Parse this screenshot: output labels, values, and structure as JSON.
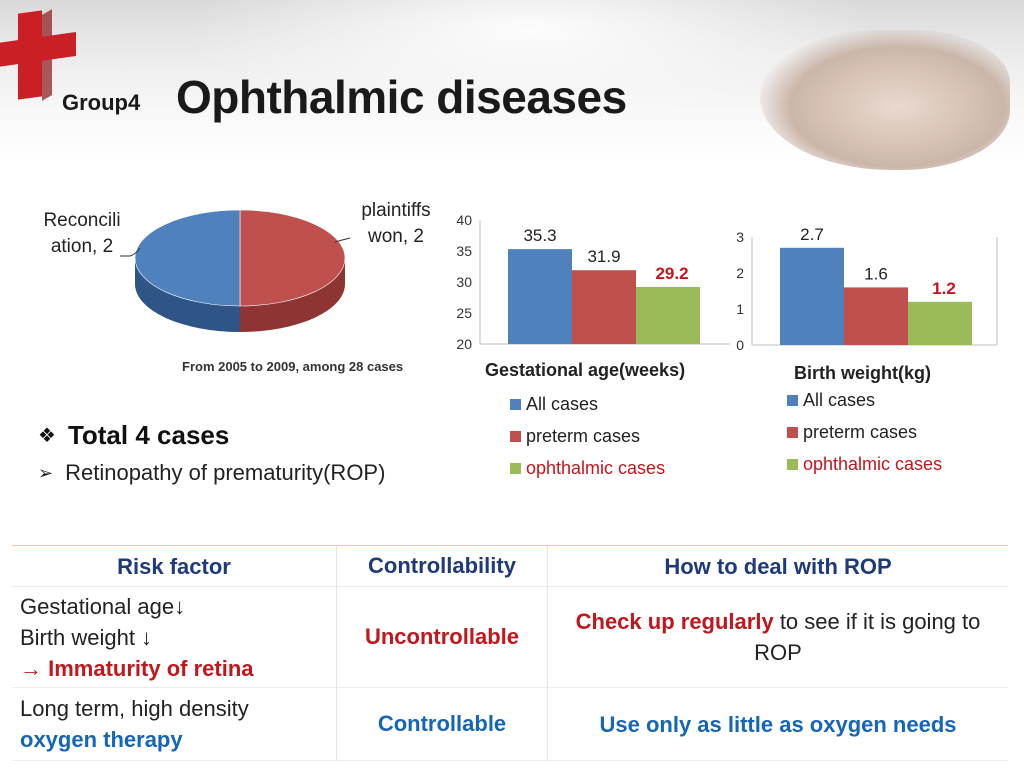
{
  "header": {
    "group_label": "Group4",
    "title": "Ophthalmic diseases"
  },
  "pie": {
    "note": "From 2005 to 2009, among 28 cases",
    "labels": {
      "left_line1": "Reconcili",
      "left_line2": "ation, 2",
      "right_line1": "plaintiffs",
      "right_line2": "won, 2"
    }
  },
  "bullets": {
    "total": "Total 4 cases",
    "rop": "Retinopathy of prematurity(ROP)"
  },
  "legend": {
    "all": "All cases",
    "preterm": "preterm cases",
    "ophthalmic": "ophthalmic cases"
  },
  "colors": {
    "blue": "#4f81bd",
    "red": "#c0504d",
    "green": "#9bbb59",
    "highlight": "#c0161c"
  },
  "chart_data": [
    {
      "type": "pie",
      "categories": [
        "Reconciliation",
        "plaintiffs won"
      ],
      "values": [
        2,
        2
      ],
      "data_labels": [
        "Reconcili ation, 2",
        "plaintiffs won, 2"
      ],
      "colors": [
        "#c0504d",
        "#4f81bd"
      ],
      "title": ""
    },
    {
      "type": "bar",
      "title": "Gestational age(weeks)",
      "categories": [
        "All cases",
        "preterm cases",
        "ophthalmic cases"
      ],
      "values": [
        35.3,
        31.9,
        29.2
      ],
      "data_labels": [
        "35.3",
        "31.9",
        "29.2"
      ],
      "highlight_index": 2,
      "ylim": [
        20,
        40
      ],
      "yticks": [
        20,
        25,
        30,
        35,
        40
      ],
      "colors": [
        "#4f81bd",
        "#c0504d",
        "#9bbb59"
      ],
      "legend_position": "bottom"
    },
    {
      "type": "bar",
      "title": "Birth weight(kg)",
      "categories": [
        "All cases",
        "preterm cases",
        "ophthalmic cases"
      ],
      "values": [
        2.7,
        1.6,
        1.2
      ],
      "data_labels": [
        "2.7",
        "1.6",
        "1.2"
      ],
      "highlight_index": 2,
      "ylim": [
        0,
        3
      ],
      "yticks": [
        0,
        1,
        2,
        3
      ],
      "colors": [
        "#4f81bd",
        "#c0504d",
        "#9bbb59"
      ],
      "legend_position": "bottom"
    }
  ],
  "table": {
    "headers": [
      "Risk factor",
      "Controllability",
      "How to deal with ROP"
    ],
    "row1": {
      "factor_line1": "Gestational age↓",
      "factor_line2": "Birth weight ↓",
      "factor_arrow": "→ ",
      "factor_line3": "Immaturity of retina",
      "control": "Uncontrollable",
      "deal_bold": "Check up regularly",
      "deal_rest": " to see if it is going to ROP"
    },
    "row2": {
      "factor_line1": "Long term, high density",
      "factor_line2": "oxygen therapy",
      "control": "Controllable",
      "deal": "Use only as little as oxygen needs"
    }
  }
}
